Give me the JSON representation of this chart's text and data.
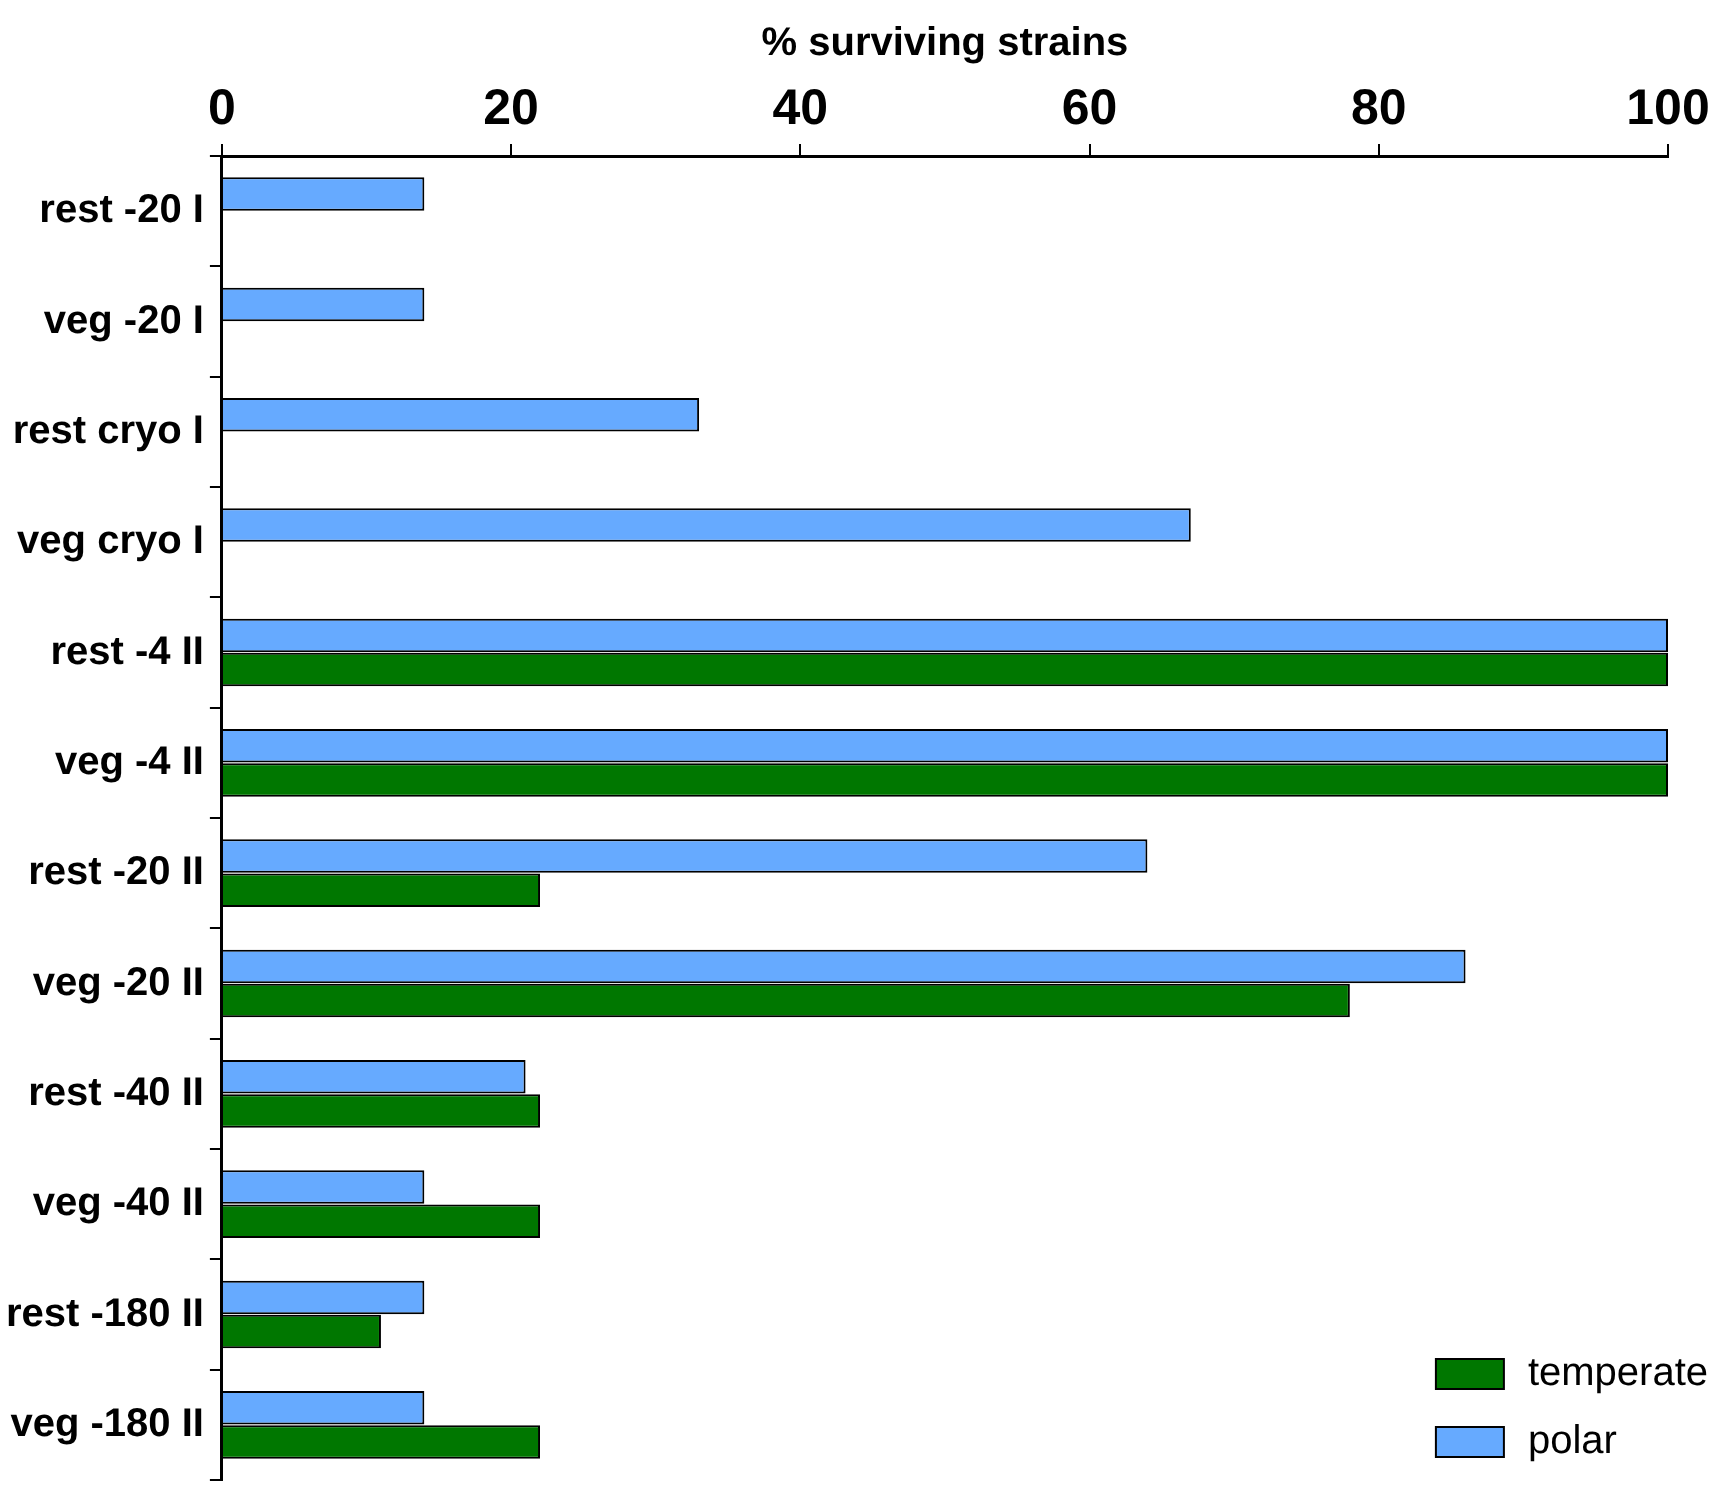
{
  "chart_data": {
    "type": "bar",
    "orientation": "horizontal",
    "xlabel": "% surviving strains",
    "categories": [
      "rest -20 I",
      "veg -20 I",
      "rest cryo I",
      "veg cryo I",
      "rest -4 II",
      "veg -4 II",
      "rest -20 II",
      "veg -20 II",
      "rest -40 II",
      "veg -40 II",
      "rest -180 II",
      "veg -180 II"
    ],
    "series": [
      {
        "name": "polar",
        "color": "#66aaff",
        "values": [
          14,
          14,
          33,
          67,
          100,
          100,
          64,
          86,
          21,
          14,
          14,
          14
        ]
      },
      {
        "name": "temperate",
        "color": "#007700",
        "values": [
          null,
          null,
          null,
          null,
          100,
          100,
          22,
          78,
          22,
          22,
          11,
          22
        ]
      }
    ],
    "xlim": [
      0,
      100
    ],
    "xticks": [
      0,
      20,
      40,
      60,
      80,
      100
    ],
    "grid": false,
    "legend": "bottom right"
  }
}
